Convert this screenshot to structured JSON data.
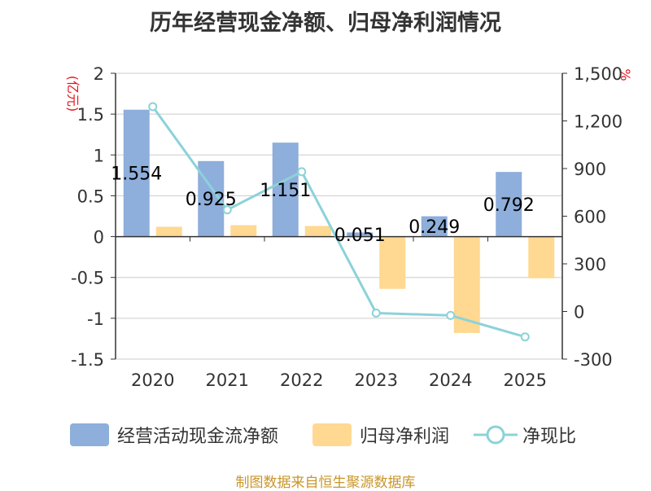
{
  "title": "历年经营现金净额、归母净利润情况",
  "source": "制图数据来自恒生聚源数据库",
  "colors": {
    "cash_bar": "#8EAEDB",
    "profit_bar": "#FFD891",
    "ratio_line": "#8CD2D9",
    "axis_label_red": "#E8141C",
    "source_text": "#C8962A"
  },
  "chart_data": {
    "type": "bar+line",
    "categories": [
      "2020",
      "2021",
      "2022",
      "2023",
      "2024",
      "2025"
    ],
    "left_axis": {
      "label": "(亿元)",
      "ylim": [
        -1.5,
        2
      ],
      "ticks": [
        2,
        1.5,
        1,
        0.5,
        0,
        -0.5,
        -1,
        -1.5
      ],
      "tick_labels": [
        "2",
        "1.5",
        "1",
        "0.5",
        "0",
        "-0.5",
        "-1",
        "-1.5"
      ]
    },
    "right_axis": {
      "label": "%",
      "ylim": [
        -300,
        1500
      ],
      "ticks": [
        1500,
        1200,
        900,
        600,
        300,
        0,
        -300
      ],
      "tick_labels": [
        "1,500",
        "1,200",
        "900",
        "600",
        "300",
        "0",
        "-300"
      ]
    },
    "series": [
      {
        "name": "经营活动现金流净额",
        "type": "bar",
        "axis": "left",
        "values": [
          1.554,
          0.925,
          1.151,
          0.051,
          0.249,
          0.792
        ],
        "labels": [
          "1.554",
          "0.925",
          "1.151",
          "0.051",
          "0.249",
          "0.792"
        ]
      },
      {
        "name": "归母净利润",
        "type": "bar",
        "axis": "left",
        "values": [
          0.12,
          0.14,
          0.13,
          -0.64,
          -1.18,
          -0.51
        ]
      },
      {
        "name": "净现比",
        "type": "line",
        "axis": "right",
        "values": [
          1290,
          640,
          880,
          -10,
          -25,
          -160
        ]
      }
    ],
    "legend": [
      "经营活动现金流净额",
      "归母净利润",
      "净现比"
    ]
  }
}
